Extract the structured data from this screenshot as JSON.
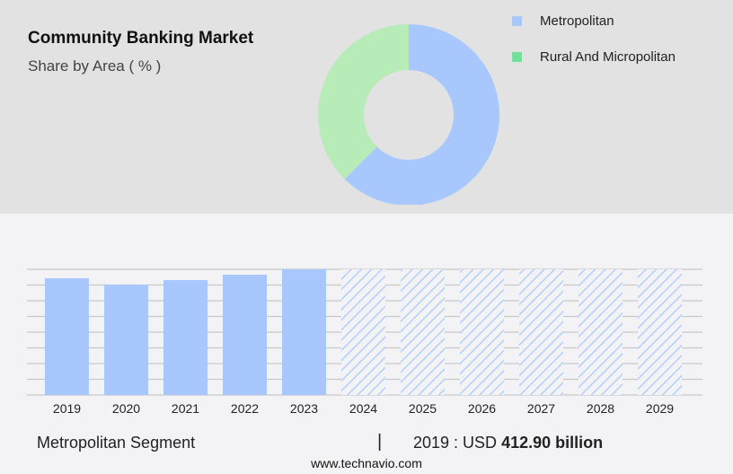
{
  "chart_data": [
    {
      "type": "pie",
      "title": "Community Banking Market",
      "subtitle": "Share by Area ( % )",
      "legend_position": "top-right",
      "series": [
        {
          "name": "Metropolitan",
          "value": 62.5,
          "color": "#a8c8fd"
        },
        {
          "name": "Rural And Micropolitan",
          "value": 37.5,
          "color": "#b7ecb9",
          "legend_color": "#72e098"
        }
      ]
    },
    {
      "type": "bar",
      "categories": [
        "2019",
        "2020",
        "2021",
        "2022",
        "2023",
        "2024",
        "2025",
        "2026",
        "2027",
        "2028",
        "2029"
      ],
      "values": [
        412.9,
        390.7,
        406.5,
        425.6,
        444.7,
        null,
        null,
        null,
        null,
        null,
        null
      ],
      "forecast_from": "2024",
      "color": "#a8c8fd",
      "grid": true,
      "ylabel": "",
      "xlabel": ""
    }
  ],
  "footer": {
    "segment": "Metropolitan Segment",
    "separator": "|",
    "year_label": "2019 : USD ",
    "value": "412.90 billion",
    "site": "www.technavio.com"
  }
}
